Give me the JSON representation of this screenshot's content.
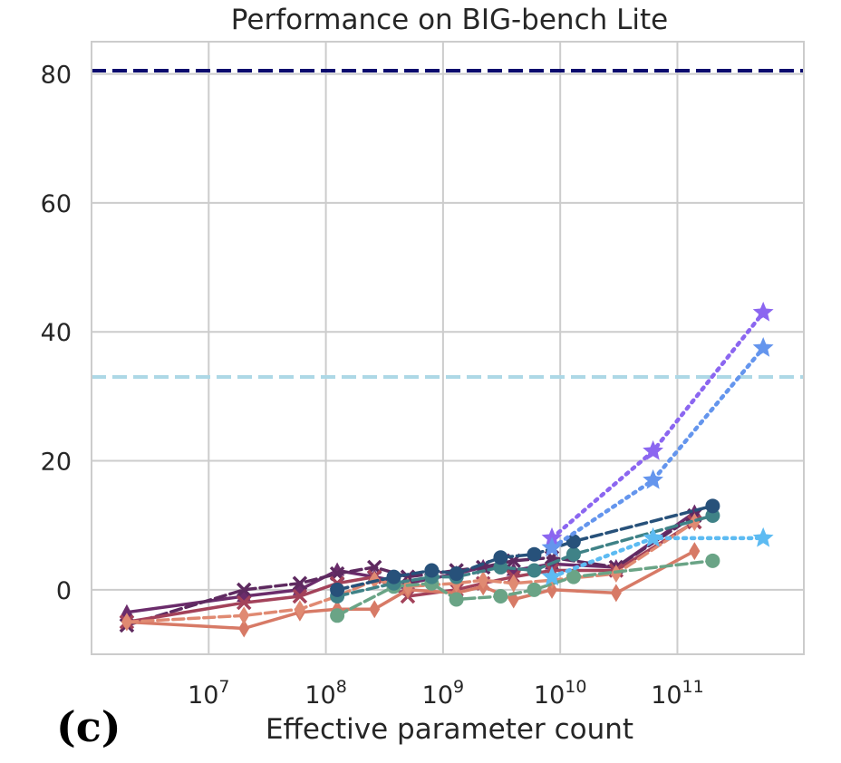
{
  "chart_data": {
    "type": "line",
    "title": "Performance on BIG-bench Lite",
    "xlabel": "Effective parameter count",
    "ylabel": "",
    "panel_label": "(c)",
    "x_scale": "log",
    "xlim": [
      1000000,
      1200000000000
    ],
    "ylim": [
      -10,
      85
    ],
    "xticks": [
      {
        "value": 10000000,
        "base": "10",
        "exp": "7"
      },
      {
        "value": 100000000,
        "base": "10",
        "exp": "8"
      },
      {
        "value": 1000000000,
        "base": "10",
        "exp": "9"
      },
      {
        "value": 10000000000,
        "base": "10",
        "exp": "10"
      },
      {
        "value": 100000000000,
        "base": "10",
        "exp": "11"
      }
    ],
    "yticks": [
      0,
      20,
      40,
      60,
      80
    ],
    "grid": true,
    "legend": "none",
    "reference_lines": [
      {
        "y": 80.5,
        "color": "#0b0b6e",
        "style": "dashed"
      },
      {
        "y": 33,
        "color": "#add8e6",
        "style": "dashed"
      }
    ],
    "series": [
      {
        "color": "#6b2c6b",
        "style": "solid",
        "marker": "triangle",
        "x": [
          2000000,
          20000000,
          60000000,
          125000000,
          260000000,
          500000000,
          1300000000,
          2200000000,
          4000000000,
          8500000000,
          30000000000,
          140000000000
        ],
        "y": [
          -3.5,
          -1.0,
          0.0,
          3.0,
          2.0,
          1.0,
          2.5,
          3.5,
          3.0,
          4.0,
          3.5,
          12.0
        ]
      },
      {
        "color": "#5e2a60",
        "style": "dashed",
        "marker": "x",
        "x": [
          2000000,
          20000000,
          60000000,
          125000000,
          260000000,
          500000000,
          1300000000,
          2200000000,
          4000000000,
          8500000000,
          30000000000,
          140000000000
        ],
        "y": [
          -5.5,
          0.0,
          1.0,
          2.5,
          3.5,
          2.0,
          3.0,
          3.5,
          4.5,
          5.0,
          3.5,
          11.5
        ]
      },
      {
        "color": "#a3425a",
        "style": "solid",
        "marker": "x",
        "x": [
          2000000,
          20000000,
          60000000,
          125000000,
          260000000,
          500000000,
          1300000000,
          2200000000,
          4000000000,
          8500000000,
          30000000000,
          140000000000
        ],
        "y": [
          -5.0,
          -2.0,
          -1.0,
          1.0,
          2.0,
          -1.0,
          0.0,
          1.0,
          2.0,
          3.0,
          3.0,
          10.5
        ]
      },
      {
        "color": "#d77a66",
        "style": "solid",
        "marker": "diamond",
        "x": [
          2000000,
          20000000,
          60000000,
          125000000,
          260000000,
          500000000,
          1300000000,
          2200000000,
          4000000000,
          8500000000,
          30000000000,
          140000000000
        ],
        "y": [
          -5.0,
          -6.0,
          -3.5,
          -3.0,
          -3.0,
          0.0,
          -0.5,
          0.5,
          -1.5,
          0.0,
          -0.5,
          6.0
        ]
      },
      {
        "color": "#e08a72",
        "style": "dashed",
        "marker": "diamond",
        "x": [
          2000000,
          20000000,
          60000000,
          125000000,
          260000000,
          500000000,
          1300000000,
          2200000000,
          4000000000,
          8500000000,
          30000000000,
          140000000000
        ],
        "y": [
          -5.0,
          -4.0,
          -3.0,
          -1.0,
          1.5,
          0.5,
          1.0,
          1.5,
          1.0,
          1.5,
          2.5,
          10.5
        ]
      },
      {
        "color": "#6aa486",
        "style": "dashed",
        "marker": "circle",
        "x": [
          125000000,
          380000000,
          800000000,
          1300000000,
          3100000000,
          6000000000,
          13000000000,
          200000000000
        ],
        "y": [
          -4.0,
          0.5,
          1.0,
          -1.5,
          -1.0,
          0.0,
          2.0,
          4.5
        ]
      },
      {
        "color": "#3f8287",
        "style": "dashed",
        "marker": "circle",
        "x": [
          125000000,
          380000000,
          800000000,
          1300000000,
          3100000000,
          6000000000,
          13000000000,
          200000000000
        ],
        "y": [
          -1.0,
          1.0,
          2.0,
          2.0,
          3.5,
          3.0,
          5.5,
          11.5
        ]
      },
      {
        "color": "#27517a",
        "style": "dashed",
        "marker": "circle",
        "x": [
          125000000,
          380000000,
          800000000,
          1300000000,
          3100000000,
          6000000000,
          13000000000,
          200000000000
        ],
        "y": [
          0.0,
          2.0,
          3.0,
          2.5,
          5.0,
          5.5,
          7.5,
          13.0
        ]
      },
      {
        "color": "#8b66f0",
        "style": "dotted",
        "marker": "star",
        "x": [
          8500000000,
          62000000000,
          540000000000
        ],
        "y": [
          8.0,
          21.5,
          43.0
        ]
      },
      {
        "color": "#6495ed",
        "style": "dotted",
        "marker": "star",
        "x": [
          8500000000,
          62000000000,
          540000000000
        ],
        "y": [
          6.5,
          17.0,
          37.5
        ]
      },
      {
        "color": "#5dbbf2",
        "style": "dotted",
        "marker": "star",
        "x": [
          8500000000,
          62000000000,
          540000000000
        ],
        "y": [
          2.0,
          8.0,
          8.0
        ]
      }
    ]
  }
}
